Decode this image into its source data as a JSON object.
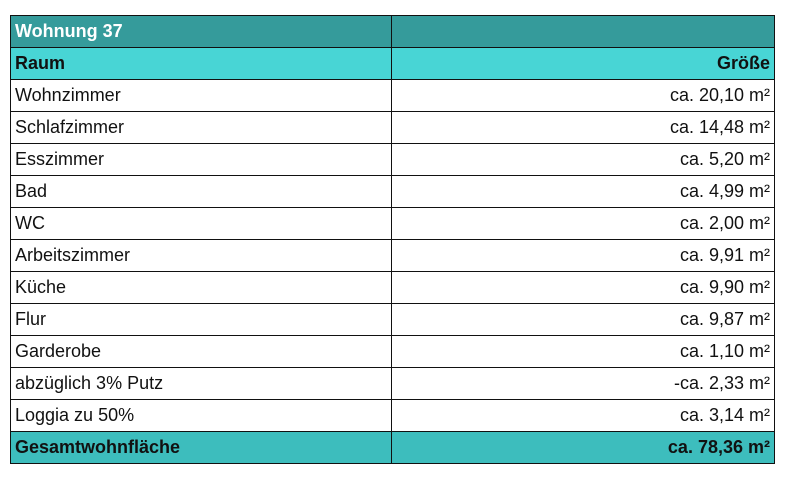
{
  "title": "Wohnung 37",
  "header": {
    "room": "Raum",
    "size": "Größe"
  },
  "rows": [
    {
      "room": "Wohnzimmer",
      "size": "ca. 20,10 m²"
    },
    {
      "room": "Schlafzimmer",
      "size": "ca. 14,48 m²"
    },
    {
      "room": "Esszimmer",
      "size": "ca. 5,20 m²"
    },
    {
      "room": "Bad",
      "size": "ca. 4,99 m²"
    },
    {
      "room": "WC",
      "size": "ca. 2,00 m²"
    },
    {
      "room": "Arbeitszimmer",
      "size": "ca. 9,91 m²"
    },
    {
      "room": "Küche",
      "size": "ca. 9,90 m²"
    },
    {
      "room": "Flur",
      "size": "ca. 9,87 m²"
    },
    {
      "room": "Garderobe",
      "size": "ca. 1,10 m²"
    },
    {
      "room": "abzüglich 3% Putz",
      "size": "-ca. 2,33 m²"
    },
    {
      "room": "Loggia zu 50%",
      "size": "ca. 3,14 m²"
    }
  ],
  "total": {
    "label": "Gesamtwohnfläche",
    "size": "ca. 78,36 m²"
  },
  "colors": {
    "title_bg": "#359b9b",
    "header_bg": "#48d5d5",
    "total_bg": "#3dbdbd"
  }
}
